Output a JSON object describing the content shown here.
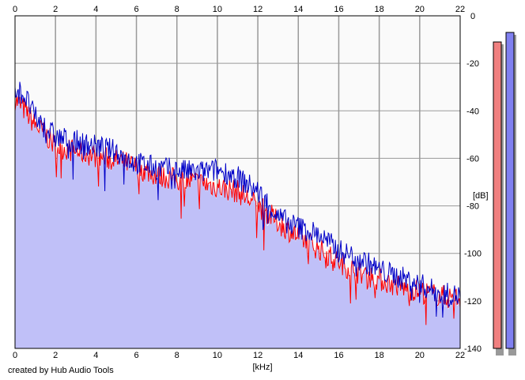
{
  "credit": "created by Hub Audio Tools",
  "colors": {
    "plot_bg": "#fafafa",
    "fill": "#c0c0f8",
    "grid": "#999999",
    "channel_left": "#ff0000",
    "channel_right": "#0000c8",
    "meter_left_fill": "#f08080",
    "meter_right_fill": "#8080f0",
    "meter_shadow": "#999999"
  },
  "chart_data": {
    "type": "area",
    "xlabel": "[kHz]",
    "ylabel": "[dB]",
    "xlim": [
      0,
      22
    ],
    "ylim": [
      -140,
      0
    ],
    "x_ticks": [
      "0",
      "2",
      "4",
      "6",
      "8",
      "10",
      "12",
      "14",
      "16",
      "18",
      "20",
      "22"
    ],
    "y_ticks": [
      "0",
      "-20",
      "-40",
      "-60",
      "-80",
      "-100",
      "-120",
      "-140"
    ],
    "grid": true,
    "series": [
      {
        "channel": "left",
        "color": "#ff0000",
        "x": [
          0,
          0.5,
          1,
          1.5,
          2,
          3,
          4,
          5,
          5.5,
          6,
          7,
          8,
          9,
          10,
          10.5,
          11,
          12,
          12.5,
          13,
          14,
          15,
          16,
          17,
          18,
          19,
          20,
          20.5,
          21,
          22
        ],
        "y": [
          -35,
          -40,
          -46,
          -50,
          -55,
          -57,
          -59,
          -61,
          -62,
          -64,
          -67,
          -69,
          -70,
          -72,
          -73,
          -74,
          -80,
          -83,
          -87,
          -93,
          -98,
          -104,
          -108,
          -111,
          -114,
          -116,
          -117,
          -118,
          -119
        ]
      },
      {
        "channel": "right",
        "color": "#0000c8",
        "x": [
          0,
          0.5,
          1,
          1.5,
          2,
          3,
          4,
          5,
          5.5,
          6,
          7,
          8,
          9,
          10,
          10.5,
          11,
          12,
          12.5,
          13,
          14,
          15,
          16,
          17,
          18,
          19,
          20,
          20.5,
          21,
          22
        ],
        "y": [
          -30,
          -34,
          -43,
          -47,
          -51,
          -53,
          -55,
          -57,
          -60,
          -62,
          -64,
          -65,
          -66,
          -65,
          -66,
          -68,
          -74,
          -79,
          -85,
          -89,
          -92,
          -99,
          -102,
          -107,
          -110,
          -113,
          -115,
          -117,
          -118
        ]
      }
    ],
    "level_meters": [
      {
        "channel": "left",
        "top_db": -11,
        "color": "#f08080"
      },
      {
        "channel": "right",
        "top_db": -7,
        "color": "#8080f0"
      }
    ]
  }
}
